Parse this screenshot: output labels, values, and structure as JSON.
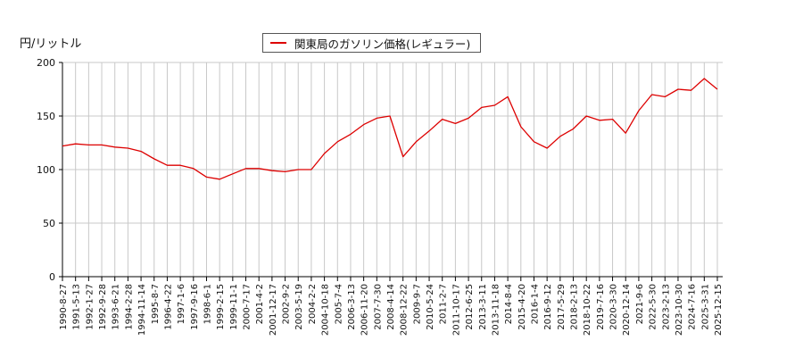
{
  "chart_data": {
    "type": "line",
    "title": "",
    "ylabel": "円/リットル",
    "xlabel": "",
    "ylim": [
      0,
      200
    ],
    "yticks": [
      0,
      50,
      100,
      150,
      200
    ],
    "grid": true,
    "legend_position": "top-center",
    "series": [
      {
        "name": "関東局のガソリン価格(レギュラー)",
        "color": "#dd0000",
        "x": [
          "1990-8-27",
          "1991-5-13",
          "1992-1-27",
          "1992-9-28",
          "1993-6-21",
          "1994-2-28",
          "1994-11-14",
          "1995-8-7",
          "1996-4-22",
          "1997-1-6",
          "1997-9-16",
          "1998-6-1",
          "1999-2-15",
          "1999-11-1",
          "2000-7-17",
          "2001-4-2",
          "2001-12-17",
          "2002-9-2",
          "2003-5-19",
          "2004-2-2",
          "2004-10-18",
          "2005-7-4",
          "2006-3-13",
          "2006-11-20",
          "2007-7-30",
          "2008-4-14",
          "2008-12-22",
          "2009-9-7",
          "2010-5-24",
          "2011-2-7",
          "2011-10-17",
          "2012-6-25",
          "2013-3-11",
          "2013-11-18",
          "2014-8-4",
          "2015-4-20",
          "2016-1-4",
          "2016-9-12",
          "2017-5-29",
          "2018-2-13",
          "2018-10-22",
          "2019-7-16",
          "2020-3-30",
          "2020-12-14",
          "2021-9-6",
          "2022-5-30",
          "2023-2-13",
          "2023-10-30",
          "2024-7-16",
          "2025-3-31",
          "2025-12-15"
        ],
        "values": [
          122,
          124,
          123,
          123,
          121,
          120,
          117,
          110,
          104,
          104,
          101,
          93,
          91,
          96,
          101,
          101,
          99,
          98,
          100,
          100,
          115,
          126,
          133,
          142,
          148,
          150,
          112,
          126,
          136,
          147,
          143,
          148,
          158,
          160,
          168,
          140,
          126,
          120,
          131,
          138,
          150,
          146,
          147,
          134,
          155,
          170,
          168,
          175,
          174,
          185,
          175
        ]
      }
    ]
  },
  "header": {
    "unit_label": "円/リットル"
  },
  "legend": {
    "label": "関東局のガソリン価格(レギュラー)",
    "color": "#dd0000"
  },
  "axis": {
    "y_labels": [
      "200",
      "150",
      "100",
      "50",
      "0"
    ],
    "x_labels": [
      "1990-8-27",
      "1991-5-13",
      "1992-1-27",
      "1992-9-28",
      "1993-6-21",
      "1994-2-28",
      "1994-11-14",
      "1995-8-7",
      "1996-4-22",
      "1997-1-6",
      "1997-9-16",
      "1998-6-1",
      "1999-2-15",
      "1999-11-1",
      "2000-7-17",
      "2001-4-2",
      "2001-12-17",
      "2002-9-2",
      "2003-5-19",
      "2004-2-2",
      "2004-10-18",
      "2005-7-4",
      "2006-3-13",
      "2006-11-20",
      "2007-7-30",
      "2008-4-14",
      "2008-12-22",
      "2009-9-7",
      "2010-5-24",
      "2011-2-7",
      "2011-10-17",
      "2012-6-25",
      "2013-3-11",
      "2013-11-18",
      "2014-8-4",
      "2015-4-20",
      "2016-1-4",
      "2016-9-12",
      "2017-5-29",
      "2018-2-13",
      "2018-10-22",
      "2019-7-16",
      "2020-3-30",
      "2020-12-14",
      "2021-9-6",
      "2022-5-30",
      "2023-2-13",
      "2023-10-30",
      "2024-7-16",
      "2025-3-31",
      "2025-12-15"
    ]
  }
}
